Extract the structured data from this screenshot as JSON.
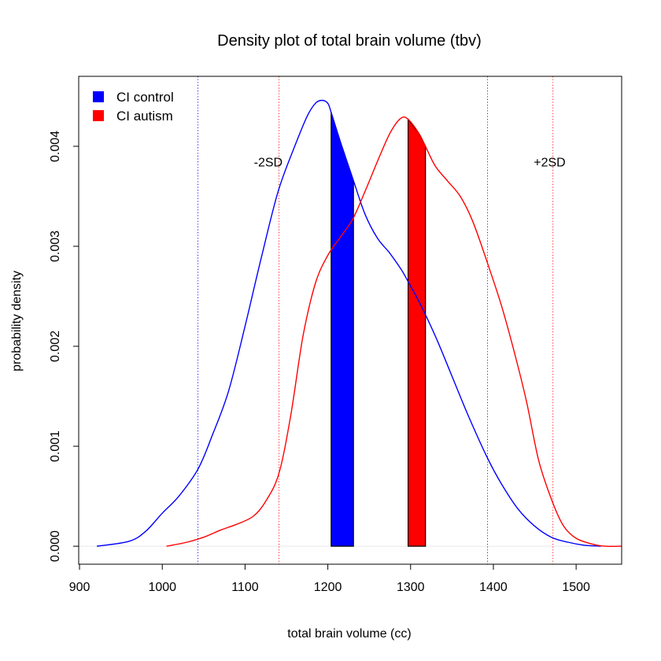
{
  "chart_data": {
    "type": "area",
    "title": "Density plot of total brain volume (tbv)",
    "xlabel": "total brain volume (cc)",
    "ylabel": "probability density",
    "xlim": [
      899,
      1555
    ],
    "ylim": [
      -0.00018,
      0.0047
    ],
    "x_ticks": [
      "900",
      "1000",
      "1100",
      "1200",
      "1300",
      "1400",
      "1500"
    ],
    "y_ticks": [
      "0.000",
      "0.001",
      "0.002",
      "0.003",
      "0.004"
    ],
    "legend_position": "top-left",
    "grid": false,
    "series": [
      {
        "name": "CI control",
        "color": "#0000FF",
        "x": [
          921,
          960,
          980,
          1000,
          1020,
          1043,
          1060,
          1080,
          1100,
          1120,
          1140,
          1160,
          1175,
          1185,
          1193,
          1200,
          1204,
          1215,
          1230,
          1245,
          1260,
          1275,
          1290,
          1300,
          1310,
          1330,
          1350,
          1370,
          1393,
          1410,
          1430,
          1450,
          1470,
          1490,
          1510,
          1530
        ],
        "y": [
          0.0,
          5e-05,
          0.00015,
          0.00033,
          0.0005,
          0.00077,
          0.0011,
          0.00155,
          0.0022,
          0.0029,
          0.00355,
          0.004,
          0.0043,
          0.00443,
          0.00446,
          0.00443,
          0.00434,
          0.00405,
          0.00368,
          0.00332,
          0.00308,
          0.00293,
          0.00275,
          0.0026,
          0.00245,
          0.0021,
          0.0017,
          0.0013,
          0.00088,
          0.00062,
          0.00037,
          0.0002,
          9e-05,
          4e-05,
          1e-05,
          0.0
        ]
      },
      {
        "name": "CI autism",
        "color": "#FF0000",
        "x": [
          1005,
          1030,
          1050,
          1070,
          1090,
          1110,
          1125,
          1141,
          1155,
          1170,
          1185,
          1200,
          1215,
          1230,
          1245,
          1260,
          1275,
          1288,
          1297,
          1310,
          1318,
          1330,
          1345,
          1360,
          1375,
          1393,
          1410,
          1425,
          1440,
          1455,
          1472,
          1485,
          1500,
          1520,
          1535,
          1555
        ],
        "y": [
          0.0,
          4e-05,
          9e-05,
          0.00016,
          0.00022,
          0.0003,
          0.00045,
          0.00073,
          0.0013,
          0.0021,
          0.00263,
          0.00291,
          0.00309,
          0.00327,
          0.00355,
          0.00385,
          0.00413,
          0.00428,
          0.00427,
          0.00413,
          0.004,
          0.0038,
          0.00365,
          0.0035,
          0.00325,
          0.00283,
          0.0024,
          0.00195,
          0.00145,
          0.00085,
          0.00043,
          0.0002,
          8e-05,
          2e-05,
          0.0,
          0.0
        ]
      }
    ],
    "shaded_intervals": [
      {
        "series": "CI control",
        "from": 1204,
        "to": 1231
      },
      {
        "series": "CI autism",
        "from": 1297,
        "to": 1318
      }
    ],
    "reference_lines": [
      {
        "series": "CI control",
        "x": 1043,
        "color": "#0000FF"
      },
      {
        "series": "CI control",
        "x": 1393,
        "color": "#0000FF"
      },
      {
        "series": "CI autism",
        "x": 1141,
        "color": "#FF0000"
      },
      {
        "series": "CI autism",
        "x": 1472,
        "color": "#FF0000"
      }
    ],
    "annotations": [
      {
        "text": "-2SD",
        "x": 1128,
        "y": 0.0038
      },
      {
        "text": "+2SD",
        "x": 1468,
        "y": 0.0038
      }
    ]
  }
}
